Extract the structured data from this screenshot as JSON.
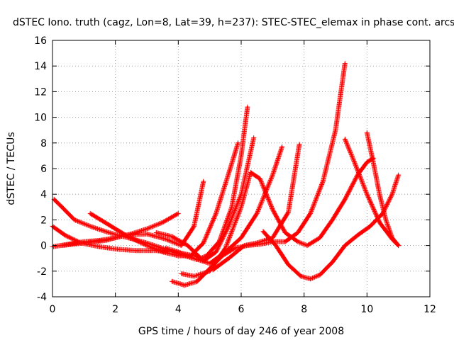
{
  "chart_data": {
    "type": "scatter",
    "title": "dSTEC Iono. truth (cagz, Lon=8, Lat=39, h=237): STEC-STEC_elemax in phase cont. arcs",
    "xlabel": "GPS time / hours of day 246 of year 2008",
    "ylabel": "dSTEC  / TECUs",
    "xlim": [
      0,
      12
    ],
    "ylim": [
      -4,
      16
    ],
    "xticks": [
      0,
      2,
      4,
      6,
      8,
      10,
      12
    ],
    "yticks": [
      -4,
      -2,
      0,
      2,
      4,
      6,
      8,
      10,
      12,
      14,
      16
    ],
    "grid": true,
    "marker": "plus",
    "color": "#ff0000",
    "series": [
      {
        "x": [
          0.05,
          0.3,
          0.7,
          1.2,
          1.8,
          2.4,
          3.0,
          3.6,
          4.1,
          4.5,
          4.7
        ],
        "y": [
          3.6,
          3.0,
          2.0,
          1.5,
          1.0,
          0.6,
          0.2,
          -0.3,
          -0.6,
          -0.8,
          -1.0
        ]
      },
      {
        "x": [
          0.0,
          0.4,
          0.9,
          1.5,
          2.1,
          2.7,
          3.3,
          3.8,
          4.2,
          4.6,
          4.9,
          5.3,
          5.7,
          6.0,
          6.2
        ],
        "y": [
          1.5,
          0.8,
          0.2,
          -0.1,
          -0.3,
          -0.4,
          -0.4,
          -0.5,
          -0.8,
          -1.1,
          -0.8,
          0.3,
          3.0,
          7.0,
          10.8
        ]
      },
      {
        "x": [
          0.0,
          0.5,
          1.0,
          1.5,
          2.0,
          2.5,
          3.0,
          3.5,
          4.0
        ],
        "y": [
          -0.1,
          0.1,
          0.3,
          0.4,
          0.6,
          0.9,
          1.3,
          1.8,
          2.5
        ]
      },
      {
        "x": [
          0.3,
          1.0,
          1.7,
          2.3,
          3.0,
          3.6,
          4.1,
          4.5,
          4.8
        ],
        "y": [
          0.0,
          0.2,
          0.4,
          0.8,
          0.9,
          0.5,
          0.0,
          1.5,
          5.0
        ]
      },
      {
        "x": [
          1.2,
          1.8,
          2.4,
          3.0,
          3.5,
          4.0,
          4.4,
          4.8,
          5.2,
          5.6,
          5.9
        ],
        "y": [
          2.5,
          1.6,
          0.7,
          0.0,
          -0.5,
          -0.8,
          -0.8,
          0.2,
          2.5,
          5.6,
          8.0
        ]
      },
      {
        "x": [
          3.3,
          3.8,
          4.3,
          4.8,
          5.2,
          5.6,
          6.0,
          6.4
        ],
        "y": [
          1.0,
          0.7,
          0.0,
          -1.2,
          -0.5,
          1.5,
          4.0,
          8.4
        ]
      },
      {
        "x": [
          3.6,
          4.0,
          4.5,
          5.0,
          5.5,
          6.0,
          6.5,
          7.0,
          7.3
        ],
        "y": [
          -0.2,
          -0.5,
          -1.0,
          -1.4,
          -0.5,
          0.6,
          2.5,
          5.5,
          7.7
        ]
      },
      {
        "x": [
          3.8,
          4.2,
          4.6,
          5.0,
          5.4,
          5.8,
          6.2,
          6.6,
          7.0,
          7.4,
          7.8,
          8.2,
          8.6,
          9.0,
          9.3
        ],
        "y": [
          -2.8,
          -3.1,
          -2.8,
          -1.8,
          -0.8,
          -0.2,
          0.0,
          0.1,
          0.3,
          0.3,
          1.0,
          2.5,
          5.0,
          9.0,
          14.2
        ]
      },
      {
        "x": [
          4.1,
          4.5,
          5.0,
          5.5,
          6.0,
          6.3,
          6.6,
          7.0,
          7.4,
          7.8,
          8.1,
          8.5,
          8.9,
          9.3,
          9.7,
          10.0,
          10.2
        ],
        "y": [
          -2.2,
          -2.4,
          -2.0,
          -0.2,
          3.0,
          5.7,
          5.2,
          2.8,
          1.0,
          0.3,
          0.0,
          0.6,
          2.0,
          3.6,
          5.5,
          6.5,
          6.8
        ]
      },
      {
        "x": [
          5.1,
          5.6,
          6.1,
          6.5,
          7.0,
          7.5,
          7.85
        ],
        "y": [
          -1.9,
          -1.0,
          0.0,
          0.2,
          0.6,
          2.6,
          7.9
        ]
      },
      {
        "x": [
          6.7,
          7.1,
          7.5,
          7.9,
          8.2,
          8.5,
          8.9,
          9.3,
          9.7,
          10.1,
          10.5,
          10.8,
          11.0
        ],
        "y": [
          1.1,
          0.0,
          -1.5,
          -2.4,
          -2.6,
          -2.3,
          -1.3,
          0.0,
          0.8,
          1.5,
          2.5,
          4.0,
          5.5
        ]
      },
      {
        "x": [
          9.3,
          9.6,
          10.0,
          10.4,
          10.8,
          11.0
        ],
        "y": [
          8.3,
          6.5,
          4.0,
          1.8,
          0.5,
          0.0
        ]
      },
      {
        "x": [
          10.0,
          10.2,
          10.4,
          10.6,
          10.8,
          11.0
        ],
        "y": [
          8.8,
          6.5,
          4.0,
          2.0,
          0.6,
          0.0
        ]
      }
    ]
  }
}
